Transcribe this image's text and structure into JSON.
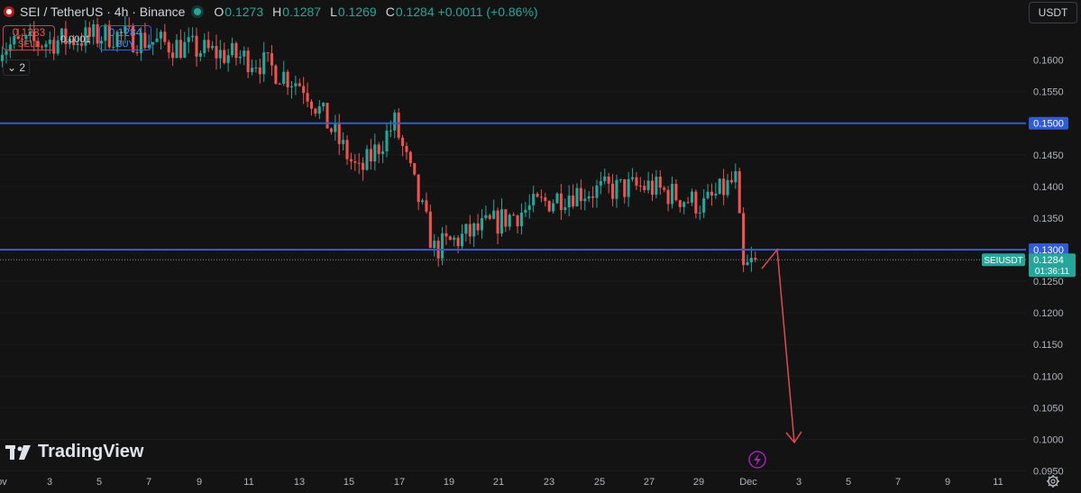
{
  "header": {
    "symbol_title": "SEI / TetherUS · 4h · Binance",
    "ohlc": [
      {
        "key": "O",
        "value": "0.1273"
      },
      {
        "key": "H",
        "value": "0.1287"
      },
      {
        "key": "L",
        "value": "0.1269"
      },
      {
        "key": "C",
        "value": "0.1284 +0.0011 (+0.86%)"
      }
    ]
  },
  "trade": {
    "sell_price": "0.1283",
    "sell_label": "SELL",
    "spread": "0.0001",
    "buy_price": "0.1284",
    "buy_label": "BUY",
    "indicators_count": "2"
  },
  "currency_button": "USDT",
  "logo_text": "TradingView",
  "colors": {
    "background": "#131313",
    "up": "#26a69a",
    "down": "#ef5350",
    "level_line": "#2f5bd8",
    "arrow": "#e04a50",
    "alert_icon": "#9c27b0"
  },
  "chart_data": {
    "type": "candlestick",
    "symbol": "SEIUSDT",
    "interval": "4h",
    "ylim": [
      0.0925,
      0.1655
    ],
    "y_ticks": [
      "0.1600",
      "0.1550",
      "0.1500",
      "0.1450",
      "0.1400",
      "0.1350",
      "0.1300",
      "0.1250",
      "0.1200",
      "0.1150",
      "0.1100",
      "0.1050",
      "0.1000",
      "0.0950"
    ],
    "x_ticks": [
      "ov",
      "3",
      "5",
      "7",
      "9",
      "11",
      "13",
      "15",
      "17",
      "19",
      "21",
      "23",
      "25",
      "27",
      "29",
      "Dec",
      "3",
      "5",
      "7",
      "9",
      "11"
    ],
    "horizontal_levels": [
      {
        "price": 0.15,
        "label": "0.1500"
      },
      {
        "price": 0.13,
        "label": "0.1300"
      }
    ],
    "last_price": {
      "value": 0.1284,
      "label": "0.1284",
      "countdown": "01:36:11",
      "symbol_label": "SEIUSDT"
    },
    "price_path_segments": [
      {
        "start": 0.162,
        "end": 0.164,
        "candles": 30
      },
      {
        "start": 0.164,
        "end": 0.16,
        "candles": 36
      },
      {
        "start": 0.16,
        "end": 0.156,
        "candles": 12
      },
      {
        "start": 0.156,
        "end": 0.142,
        "candles": 14
      },
      {
        "start": 0.142,
        "end": 0.15,
        "candles": 9
      },
      {
        "start": 0.15,
        "end": 0.13,
        "candles": 10
      },
      {
        "start": 0.13,
        "end": 0.135,
        "candles": 18
      },
      {
        "start": 0.135,
        "end": 0.139,
        "candles": 16
      },
      {
        "start": 0.139,
        "end": 0.14,
        "candles": 20
      },
      {
        "start": 0.14,
        "end": 0.137,
        "candles": 14
      },
      {
        "start": 0.137,
        "end": 0.141,
        "candles": 8
      },
      {
        "start": 0.141,
        "end": 0.1265,
        "candles": 2
      },
      {
        "start": 0.1265,
        "end": 0.1284,
        "candles": 3
      }
    ],
    "projection_arrow": [
      {
        "date": "Dec 1",
        "price": 0.127
      },
      {
        "date": "Dec 2",
        "price": 0.13
      },
      {
        "date": "Dec 3",
        "price": 0.0995
      }
    ]
  }
}
